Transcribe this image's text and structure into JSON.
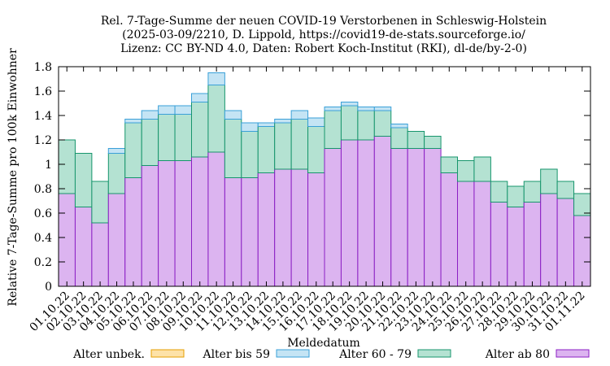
{
  "chart_data": {
    "type": "bar",
    "stacked": true,
    "title_lines": [
      "Rel. 7-Tage-Summe der neuen COVID-19 Verstorbenen in Schleswig-Holstein",
      "(2025-03-09/2210, D. Lippold, https://covid19-de-stats.sourceforge.io/",
      "Lizenz: CC BY-ND 4.0, Daten: Robert Koch-Institut (RKI), dl-de/by-2-0)"
    ],
    "xlabel": "Meldedatum",
    "ylabel": "Relative 7-Tage-Summe pro 100k Einwohner",
    "ylim": [
      0,
      1.8
    ],
    "yticks": [
      "0",
      "0.2",
      "0.4",
      "0.6",
      "0.8",
      "1",
      "1.2",
      "1.4",
      "1.6",
      "1.8"
    ],
    "grid": false,
    "legend_position": "bottom",
    "categories": [
      "01.10.22",
      "02.10.22",
      "03.10.22",
      "04.10.22",
      "05.10.22",
      "06.10.22",
      "07.10.22",
      "08.10.22",
      "09.10.22",
      "10.10.22",
      "11.10.22",
      "12.10.22",
      "13.10.22",
      "14.10.22",
      "15.10.22",
      "16.10.22",
      "17.10.22",
      "18.10.22",
      "19.10.22",
      "20.10.22",
      "21.10.22",
      "22.10.22",
      "23.10.22",
      "24.10.22",
      "25.10.22",
      "26.10.22",
      "27.10.22",
      "28.10.22",
      "29.10.22",
      "30.10.22",
      "31.10.22",
      "01.11.22"
    ],
    "series": [
      {
        "name": "Alter ab 80",
        "fill": "#dcb4f0",
        "stroke": "#8b1fc4",
        "values": [
          0.76,
          0.65,
          0.52,
          0.76,
          0.89,
          0.99,
          1.03,
          1.03,
          1.06,
          1.1,
          0.89,
          0.89,
          0.93,
          0.96,
          0.96,
          0.93,
          1.13,
          1.2,
          1.2,
          1.23,
          1.13,
          1.13,
          1.13,
          0.93,
          0.86,
          0.86,
          0.69,
          0.65,
          0.69,
          0.76,
          0.72,
          0.58
        ]
      },
      {
        "name": "Alter 60 - 79",
        "fill": "#b4e2d2",
        "stroke": "#17956c",
        "values": [
          0.44,
          0.44,
          0.34,
          0.33,
          0.45,
          0.38,
          0.38,
          0.38,
          0.45,
          0.55,
          0.48,
          0.38,
          0.38,
          0.38,
          0.41,
          0.38,
          0.31,
          0.28,
          0.24,
          0.21,
          0.17,
          0.14,
          0.1,
          0.13,
          0.17,
          0.2,
          0.17,
          0.17,
          0.17,
          0.2,
          0.14,
          0.18
        ]
      },
      {
        "name": "Alter bis 59",
        "fill": "#c4e4f4",
        "stroke": "#3aa0d8",
        "values": [
          0,
          0,
          0,
          0.04,
          0.03,
          0.07,
          0.07,
          0.07,
          0.07,
          0.1,
          0.07,
          0.07,
          0.03,
          0.03,
          0.07,
          0.07,
          0.03,
          0.03,
          0.03,
          0.03,
          0.03,
          0,
          0,
          0,
          0,
          0,
          0,
          0,
          0,
          0,
          0,
          0
        ]
      },
      {
        "name": "Alter unbek.",
        "fill": "#fde2a8",
        "stroke": "#e69f00",
        "values": [
          0,
          0,
          0,
          0,
          0,
          0,
          0,
          0,
          0,
          0,
          0,
          0,
          0,
          0,
          0,
          0,
          0,
          0,
          0,
          0,
          0,
          0,
          0,
          0,
          0,
          0,
          0,
          0,
          0,
          0,
          0,
          0
        ]
      }
    ],
    "legend_order": [
      "Alter unbek.",
      "Alter bis 59",
      "Alter 60 - 79",
      "Alter ab 80"
    ]
  }
}
